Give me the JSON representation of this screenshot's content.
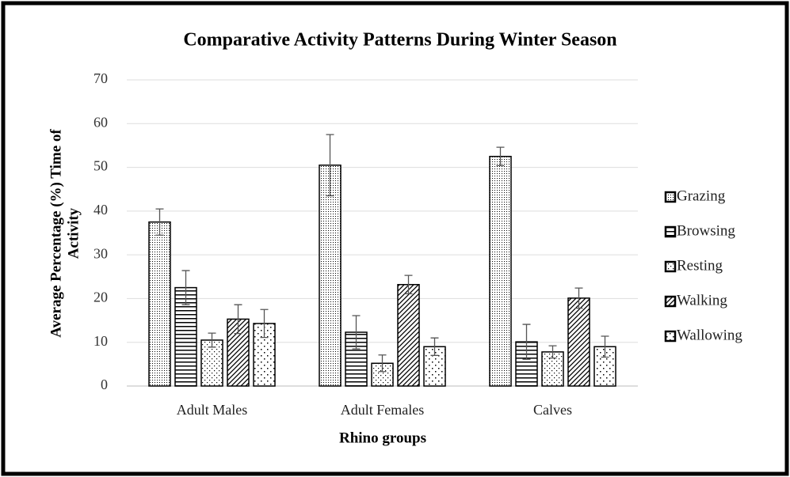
{
  "chart_data": {
    "type": "bar",
    "title": "Comparative Activity Patterns During Winter Season",
    "xlabel": "Rhino groups",
    "ylabel": [
      "Average Percentage (%) Time of",
      "Activity"
    ],
    "categories": [
      "Adult Males",
      "Adult Females",
      "Calves"
    ],
    "series": [
      {
        "name": "Grazing",
        "color": "#000000",
        "values": [
          37.5,
          50.5,
          52.5
        ],
        "errors": [
          3,
          7,
          2.1
        ]
      },
      {
        "name": "Browsing",
        "color": "#000000",
        "values": [
          22.5,
          12.3,
          10.1
        ],
        "errors": [
          3.9,
          3.8,
          4
        ]
      },
      {
        "name": "Resting",
        "color": "#000000",
        "values": [
          10.5,
          5.2,
          7.8
        ],
        "errors": [
          1.6,
          1.9,
          1.4
        ]
      },
      {
        "name": "Walking",
        "color": "#000000",
        "values": [
          15.3,
          23.2,
          20.1
        ],
        "errors": [
          3.3,
          2.1,
          2.3
        ]
      },
      {
        "name": "Wallowing",
        "color": "#000000",
        "values": [
          14.3,
          9,
          9
        ],
        "errors": [
          3.2,
          2,
          2.4
        ]
      }
    ],
    "ylim": [
      0,
      70
    ],
    "yticks": [
      0,
      10,
      20,
      30,
      40,
      50,
      60,
      70
    ],
    "grid": true,
    "legend": "right"
  }
}
